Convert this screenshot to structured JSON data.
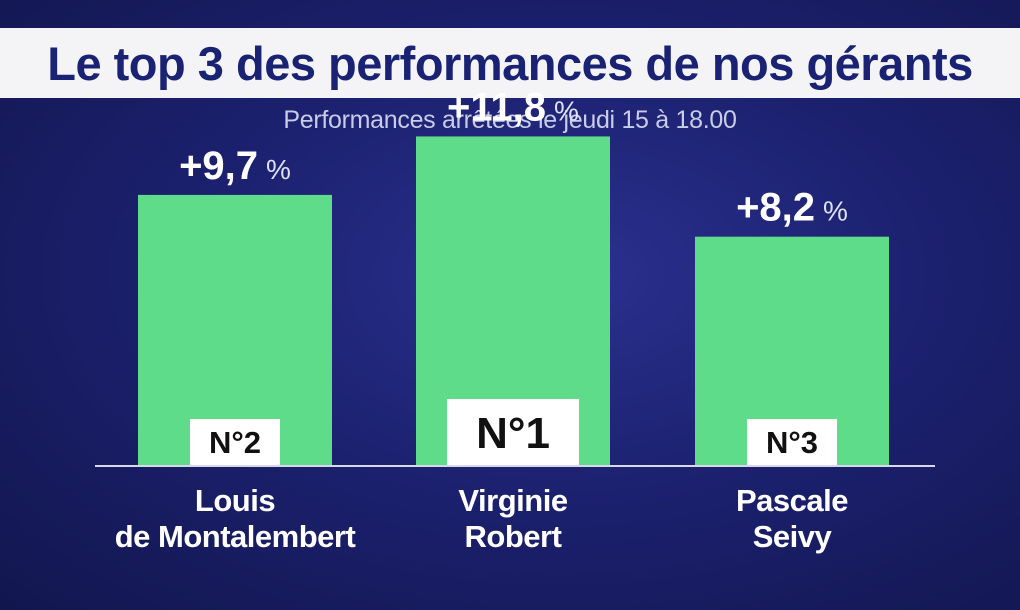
{
  "header": {
    "title": "Le top 3 des performances de nos gérants",
    "subtitle": "Performances arrêtées le jeudi 15 à 18.00"
  },
  "colors": {
    "bar": "#5edc8a",
    "baseline": "#d8d8e8",
    "rank_box": "#ffffff"
  },
  "chart_data": {
    "type": "bar",
    "title": "Le top 3 des performances de nos gérants",
    "subtitle": "Performances arrêtées le jeudi 15 à 18.00",
    "unit": "%",
    "categories": [
      [
        "Louis",
        "de Montalembert"
      ],
      [
        "Virginie",
        "Robert"
      ],
      [
        "Pascale",
        "Seivy"
      ]
    ],
    "values": [
      9.7,
      11.8,
      8.2
    ],
    "value_labels": [
      "+9,7",
      "+11,8",
      "+8,2"
    ],
    "ranks": [
      "N°2",
      "N°1",
      "N°3"
    ],
    "ylim": [
      0,
      16.7
    ]
  }
}
